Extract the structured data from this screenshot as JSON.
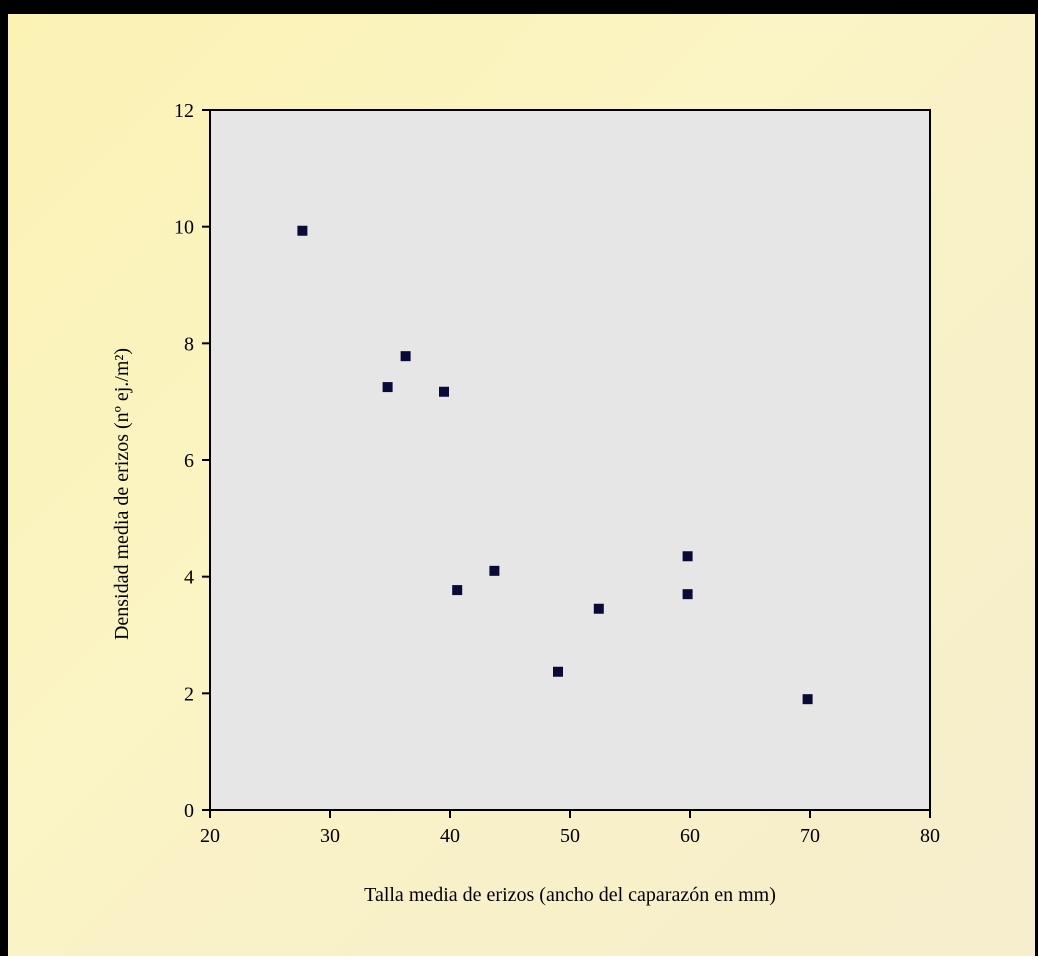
{
  "chart_data": {
    "type": "scatter",
    "title": "",
    "xlabel": "Talla media de erizos (ancho del caparazón en mm)",
    "ylabel": "Densidad media de erizos (nº ej./m²)",
    "xlim": [
      20,
      80
    ],
    "ylim": [
      0,
      12
    ],
    "x_ticks": [
      20,
      30,
      40,
      50,
      60,
      70,
      80
    ],
    "y_ticks": [
      0,
      2,
      4,
      6,
      8,
      10,
      12
    ],
    "grid": false,
    "legend": "none",
    "marker": "square",
    "colors": {
      "plot_area": "#e6e6e6",
      "marker": "#0a0a3a",
      "background": "#fbf3be"
    },
    "series": [
      {
        "points": [
          {
            "x": 27.7,
            "y": 9.93
          },
          {
            "x": 34.8,
            "y": 7.25
          },
          {
            "x": 36.3,
            "y": 7.78
          },
          {
            "x": 39.5,
            "y": 7.17
          },
          {
            "x": 40.6,
            "y": 3.77
          },
          {
            "x": 43.7,
            "y": 4.1
          },
          {
            "x": 49.0,
            "y": 2.37
          },
          {
            "x": 52.4,
            "y": 3.45
          },
          {
            "x": 59.8,
            "y": 4.35
          },
          {
            "x": 59.8,
            "y": 3.7
          },
          {
            "x": 69.8,
            "y": 1.9
          }
        ]
      }
    ]
  }
}
